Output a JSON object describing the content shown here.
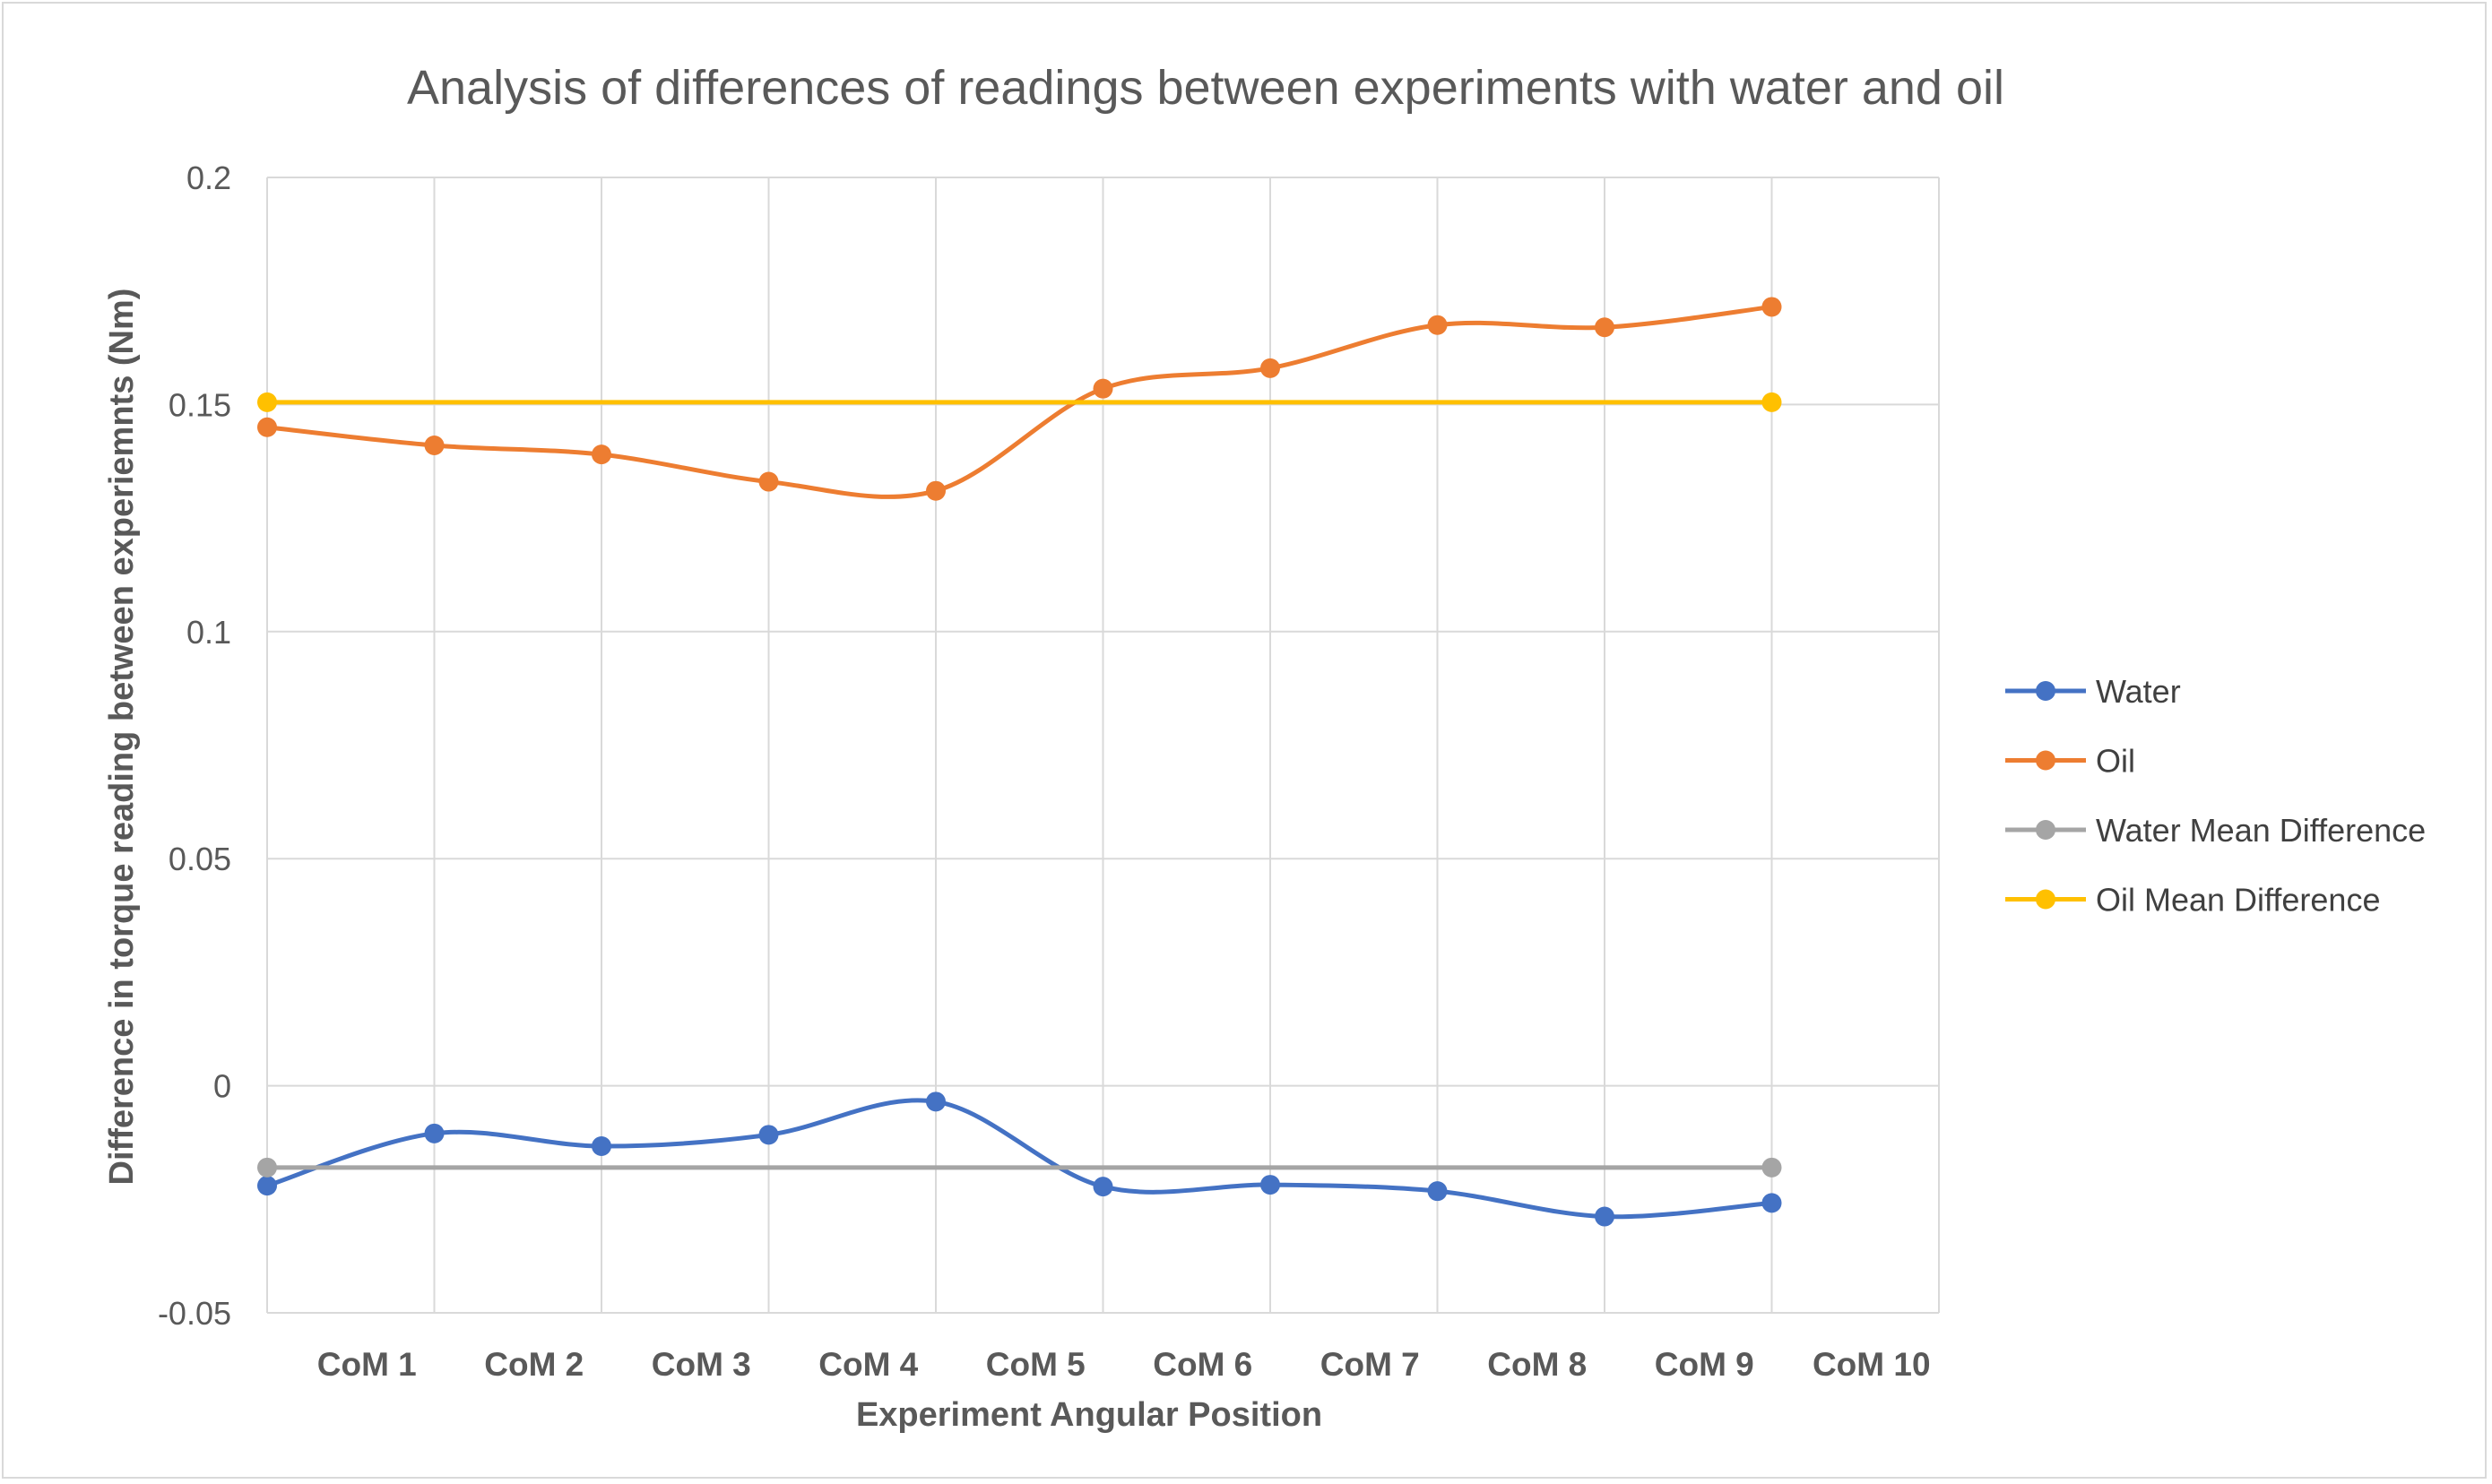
{
  "chart_data": {
    "type": "line",
    "title": "Analysis of differences of readings between experiments with water and oil",
    "xlabel": "Experiment Angular Position",
    "ylabel": "Difference in torque reading between experiemnts (Nm)",
    "categories": [
      "CoM 1",
      "CoM 2",
      "CoM 3",
      "CoM 4",
      "CoM 5",
      "CoM 6",
      "CoM 7",
      "CoM 8",
      "CoM 9",
      "CoM 10"
    ],
    "ylim": [
      -0.05,
      0.2
    ],
    "yticks": [
      -0.05,
      0,
      0.05,
      0.1,
      0.15,
      0.2
    ],
    "ytick_labels": [
      "-0.05",
      "0",
      "0.05",
      "0.1",
      "0.15",
      "0.2"
    ],
    "grid": true,
    "legend_position": "right",
    "series": [
      {
        "name": "Water",
        "color": "#4472c4",
        "smooth": true,
        "values": [
          -0.022,
          -0.0105,
          -0.0133,
          -0.0108,
          -0.0035,
          -0.0222,
          -0.0218,
          -0.0232,
          -0.0288,
          -0.0258
        ]
      },
      {
        "name": "Oil",
        "color": "#ed7d31",
        "smooth": true,
        "values": [
          0.145,
          0.141,
          0.139,
          0.133,
          0.131,
          0.1535,
          0.158,
          0.1675,
          0.167,
          0.1715
        ]
      },
      {
        "name": "Water Mean Difference",
        "color": "#a5a5a5",
        "smooth": false,
        "values": [
          -0.018,
          -0.018,
          -0.018,
          -0.018,
          -0.018,
          -0.018,
          -0.018,
          -0.018,
          -0.018,
          -0.018
        ]
      },
      {
        "name": "Oil Mean Difference",
        "color": "#ffc000",
        "smooth": false,
        "values": [
          0.1505,
          0.1505,
          0.1505,
          0.1505,
          0.1505,
          0.1505,
          0.1505,
          0.1505,
          0.1505,
          0.1505
        ]
      }
    ]
  }
}
